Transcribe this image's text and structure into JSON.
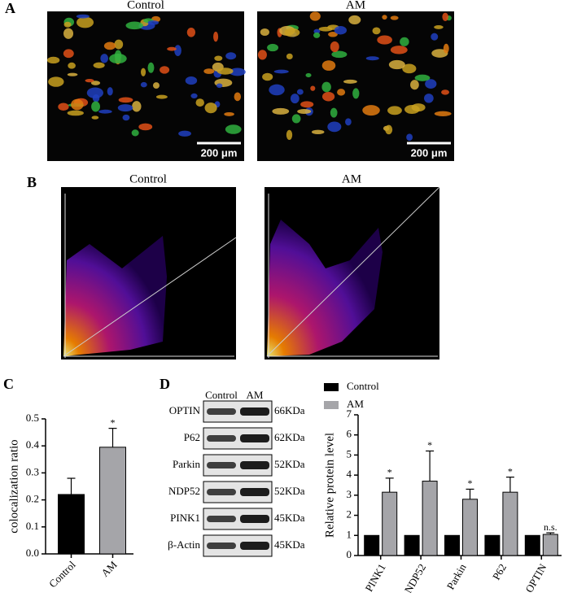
{
  "panel_labels": [
    "A",
    "B",
    "C",
    "D"
  ],
  "panel_a": {
    "titles": [
      "Control",
      "AM"
    ],
    "scale_bars": [
      "200 μm",
      "200 μm"
    ]
  },
  "panel_b": {
    "titles": [
      "Control",
      "AM"
    ]
  },
  "blot": {
    "header": [
      "Control",
      "AM"
    ],
    "rows": [
      {
        "protein": "OPTIN",
        "size": "66KDa"
      },
      {
        "protein": "P62",
        "size": "62KDa"
      },
      {
        "protein": "Parkin",
        "size": "52KDa"
      },
      {
        "protein": "NDP52",
        "size": "52KDa"
      },
      {
        "protein": "PINK1",
        "size": "45KDa"
      },
      {
        "protein": "β-Actin",
        "size": "45KDa"
      }
    ]
  },
  "chart_data": [
    {
      "type": "bar",
      "ylabel": "colocalization ratio",
      "categories": [
        "Control",
        "AM"
      ],
      "values": [
        0.22,
        0.395
      ],
      "errors": [
        0.06,
        0.07
      ],
      "colors": [
        "#000000",
        "#a5a5a9"
      ],
      "value_annotations": [
        null,
        "*"
      ],
      "ylim": [
        0,
        0.5
      ],
      "yticks": [
        {
          "value": 0,
          "label": "0.0"
        },
        0.1,
        0.2,
        0.3,
        0.4,
        0.5
      ]
    },
    {
      "type": "bar",
      "ylabel": "Relative protein level",
      "categories": [
        "PINK1",
        "NDP52",
        "Parkin",
        "P62",
        "OPTIN"
      ],
      "series": [
        {
          "name": "Control",
          "color": "#000000",
          "values": [
            1,
            1,
            1,
            1,
            1
          ]
        },
        {
          "name": "AM",
          "color": "#a5a5a9",
          "values": [
            3.15,
            3.7,
            2.8,
            3.15,
            1.05
          ],
          "errors": [
            0.7,
            1.5,
            0.5,
            0.75,
            0.08
          ],
          "value_annotations": [
            "*",
            "*",
            "*",
            "*",
            "n.s."
          ]
        }
      ],
      "legend": "top-left",
      "ylim": [
        0,
        7
      ],
      "yticks": [
        0,
        1,
        2,
        3,
        4,
        5,
        6,
        7
      ]
    }
  ]
}
